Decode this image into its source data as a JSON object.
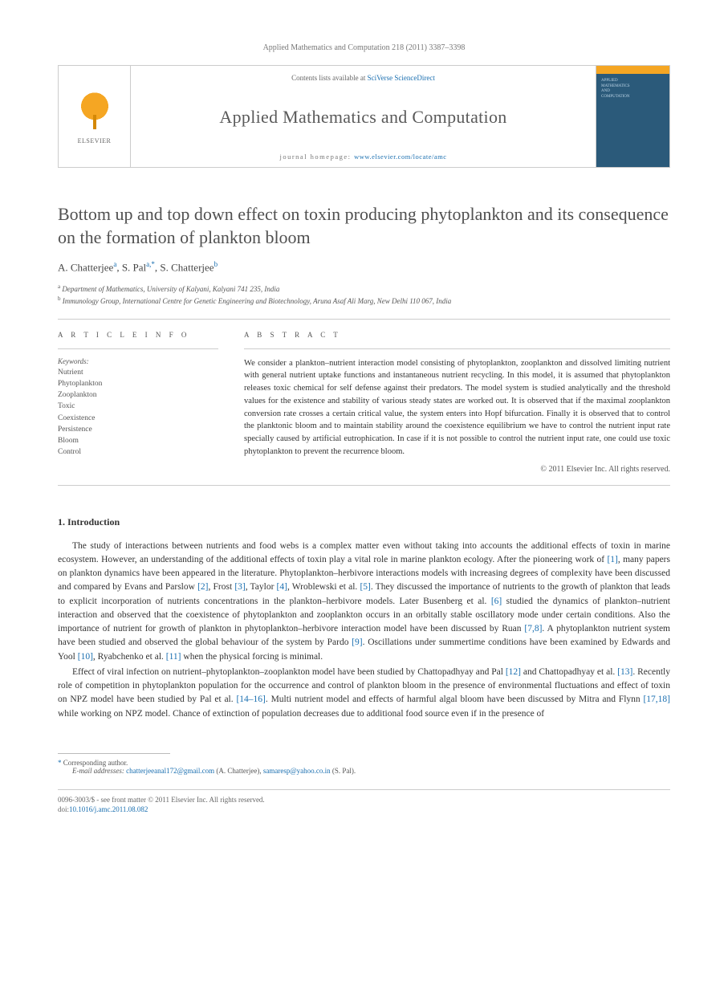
{
  "journal_ref": "Applied Mathematics and Computation 218 (2011) 3387–3398",
  "masthead": {
    "contents_prefix": "Contents lists available at ",
    "contents_link": "SciVerse ScienceDirect",
    "journal_name": "Applied Mathematics and Computation",
    "homepage_prefix": "journal homepage: ",
    "homepage_url": "www.elsevier.com/locate/amc",
    "publisher": "ELSEVIER",
    "cover_text1": "APPLIED",
    "cover_text2": "MATHEMATICS",
    "cover_text3": "AND",
    "cover_text4": "COMPUTATION"
  },
  "title": "Bottom up and top down effect on toxin producing phytoplankton and its consequence on the formation of plankton bloom",
  "authors": {
    "a1_name": "A. Chatterjee",
    "a1_aff": "a",
    "a2_name": "S. Pal",
    "a2_aff": "a,",
    "a2_star": "*",
    "a3_name": "S. Chatterjee",
    "a3_aff": "b"
  },
  "affiliations": {
    "a": "Department of Mathematics, University of Kalyani, Kalyani 741 235, India",
    "b": "Immunology Group, International Centre for Genetic Engineering and Biotechnology, Aruna Asaf Ali Marg, New Delhi 110 067, India"
  },
  "article_info_label": "A R T I C L E   I N F O",
  "keywords_label": "Keywords:",
  "keywords": [
    "Nutrient",
    "Phytoplankton",
    "Zooplankton",
    "Toxic",
    "Coexistence",
    "Persistence",
    "Bloom",
    "Control"
  ],
  "abstract_label": "A B S T R A C T",
  "abstract_text": "We consider a plankton–nutrient interaction model consisting of phytoplankton, zooplankton and dissolved limiting nutrient with general nutrient uptake functions and instantaneous nutrient recycling. In this model, it is assumed that phytoplankton releases toxic chemical for self defense against their predators. The model system is studied analytically and the threshold values for the existence and stability of various steady states are worked out. It is observed that if the maximal zooplankton conversion rate crosses a certain critical value, the system enters into Hopf bifurcation. Finally it is observed that to control the planktonic bloom and to maintain stability around the coexistence equilibrium we have to control the nutrient input rate specially caused by artificial eutrophication. In case if it is not possible to control the nutrient input rate, one could use toxic phytoplankton to prevent the recurrence bloom.",
  "abstract_copyright": "© 2011 Elsevier Inc. All rights reserved.",
  "section1_heading": "1. Introduction",
  "para1_pre": "The study of interactions between nutrients and food webs is a complex matter even without taking into accounts the additional effects of toxin in marine ecosystem. However, an understanding of the additional effects of toxin play a vital role in marine plankton ecology. After the pioneering work of ",
  "ref1": "[1]",
  "para1_mid1": ", many papers on plankton dynamics have been appeared in the literature. Phytoplankton–herbivore interactions models with increasing degrees of complexity have been discussed and compared by Evans and Parslow ",
  "ref2": "[2]",
  "para1_mid2": ", Frost ",
  "ref3": "[3]",
  "para1_mid3": ", Taylor ",
  "ref4": "[4]",
  "para1_mid4": ", Wroblewski et al. ",
  "ref5": "[5]",
  "para1_mid5": ". They discussed the importance of nutrients to the growth of plankton that leads to explicit incorporation of nutrients concentrations in the plankton–herbivore models. Later Busenberg et al. ",
  "ref6": "[6]",
  "para1_mid6": " studied the dynamics of plankton–nutrient interaction and observed that the coexistence of phytoplankton and zooplankton occurs in an orbitally stable oscillatory mode under certain conditions. Also the importance of nutrient for growth of plankton in phytoplankton–herbivore interaction model have been discussed by Ruan ",
  "ref78": "[7,8]",
  "para1_mid7": ". A phytoplankton nutrient system have been studied and observed the global behaviour of the system by Pardo ",
  "ref9": "[9]",
  "para1_mid8": ". Oscillations under summertime conditions have been examined by Edwards and Yool ",
  "ref10": "[10]",
  "para1_mid9": ", Ryabchenko et al. ",
  "ref11": "[11]",
  "para1_end": " when the physical forcing is minimal.",
  "para2_pre": "Effect of viral infection on nutrient–phytoplankton–zooplankton model have been studied by Chattopadhyay and Pal ",
  "ref12": "[12]",
  "para2_mid1": " and Chattopadhyay et al. ",
  "ref13": "[13]",
  "para2_mid2": ". Recently role of competition in phytoplankton population for the occurrence and control of plankton bloom in the presence of environmental fluctuations and effect of toxin on NPZ model have been studied by Pal et al. ",
  "ref1416": "[14–16]",
  "para2_mid3": ". Multi nutrient model and effects of harmful algal bloom have been discussed by Mitra and Flynn ",
  "ref1718": "[17,18]",
  "para2_end": " while working on NPZ model. Chance of extinction of population decreases due to additional food source even if in the presence of",
  "corresponding_label": "Corresponding author.",
  "email_label": "E-mail addresses:",
  "email1": "chatterjeeanal172@gmail.com",
  "email1_who": " (A. Chatterjee), ",
  "email2": "samaresp@yahoo.co.in",
  "email2_who": " (S. Pal).",
  "footer_line1": "0096-3003/$ - see front matter © 2011 Elsevier Inc. All rights reserved.",
  "footer_doi_label": "doi:",
  "footer_doi": "10.1016/j.amc.2011.08.082",
  "colors": {
    "link": "#1a6fb0",
    "text": "#333333",
    "muted": "#666666",
    "border": "#cccccc",
    "elsevier_orange": "#f5a623",
    "cover_blue": "#2b5a7a"
  },
  "typography": {
    "title_fontsize": 22,
    "body_fontsize": 11.5,
    "abstract_fontsize": 10.5,
    "footnote_fontsize": 9
  }
}
